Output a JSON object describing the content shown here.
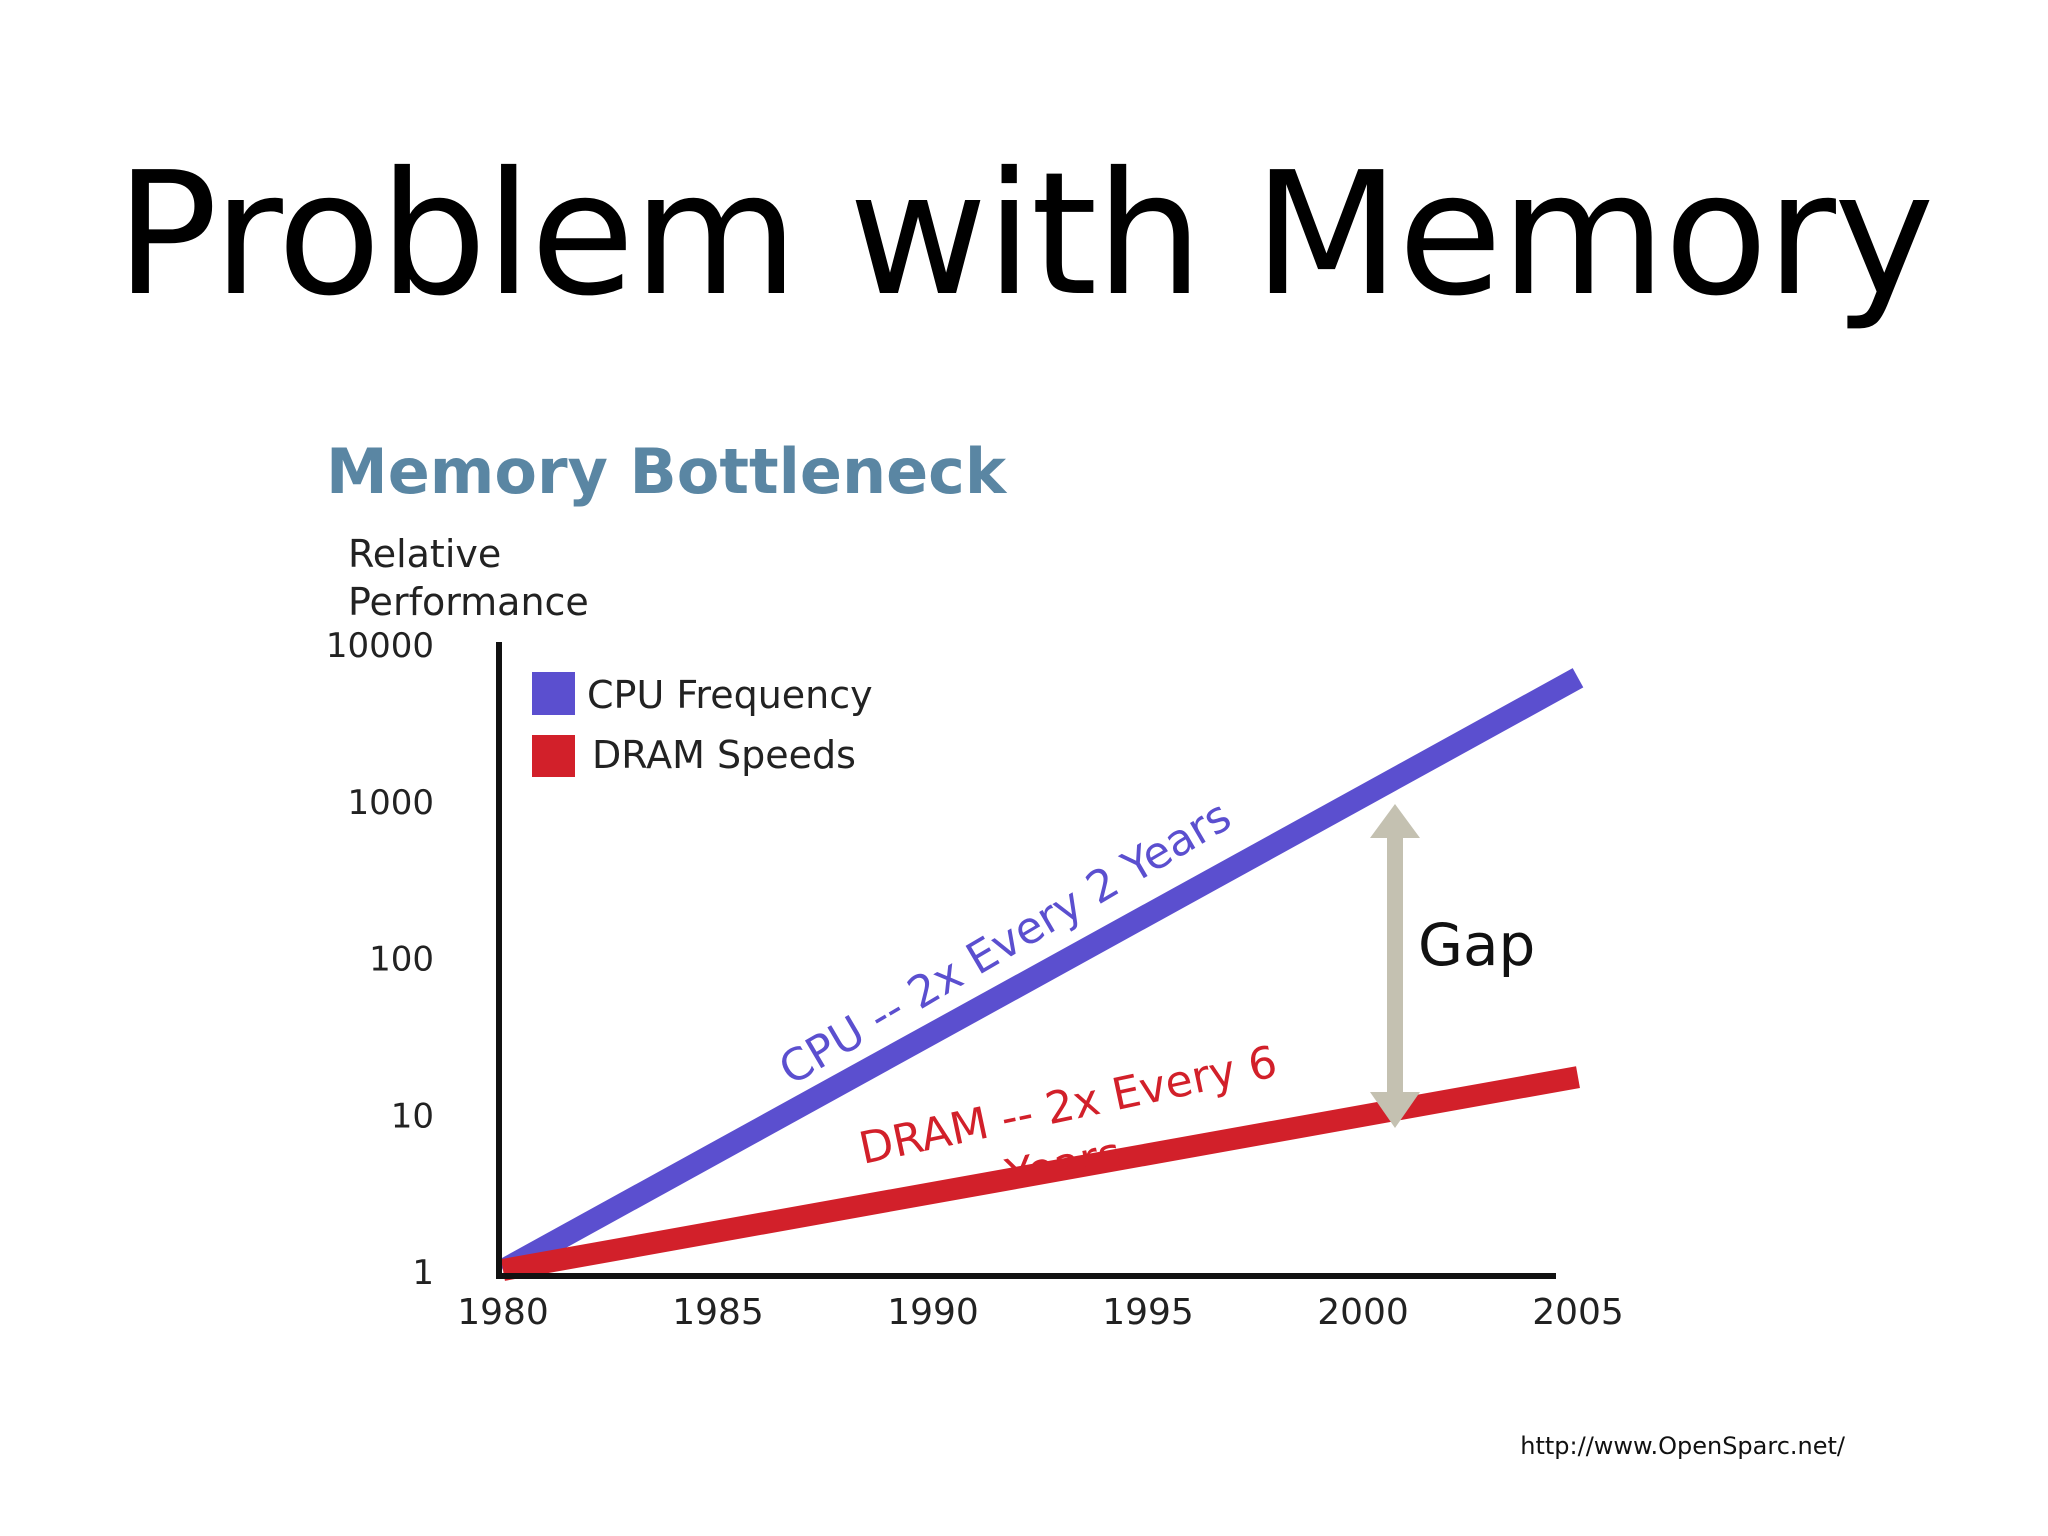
{
  "slide": {
    "title": "Problem with Memory",
    "source": "http://www.OpenSparc.net/"
  },
  "chart_data": {
    "type": "line",
    "title": "Memory Bottleneck",
    "ylabel_lines": [
      "Relative",
      "Performance"
    ],
    "xlabel": "",
    "y_scale": "log",
    "ylim": [
      1,
      10000
    ],
    "xlim": [
      1980,
      2005
    ],
    "x_ticks": [
      "1980",
      "1985",
      "1990",
      "1995",
      "2000",
      "2005"
    ],
    "y_ticks": [
      "1",
      "10",
      "100",
      "1000",
      "10000"
    ],
    "grid": false,
    "legend_position": "top-left",
    "series": [
      {
        "name": "CPU Frequency",
        "color": "#5b4fcf",
        "x": [
          1980,
          2005
        ],
        "y": [
          1,
          6000
        ]
      },
      {
        "name": "DRAM Speeds",
        "color": "#d2202a",
        "x": [
          1980,
          2005
        ],
        "y": [
          1,
          17
        ]
      }
    ],
    "annotations": {
      "cpu_label": "CPU -- 2x Every 2 Years",
      "dram_label_line1": "DRAM -- 2x Every 6",
      "dram_label_line2": "Years",
      "gap_label": "Gap",
      "title_color": "#5a86a3",
      "gap_arrow_color": "#c4c1b1"
    }
  }
}
